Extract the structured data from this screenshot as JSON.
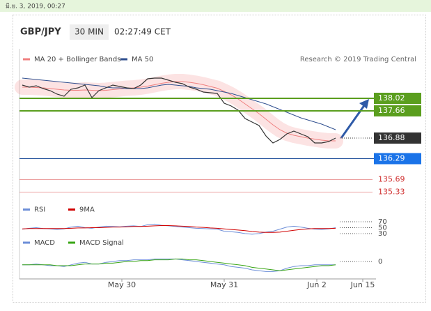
{
  "top_bar": {
    "date": "มิ.ย. 3, 2019, 00:27"
  },
  "header": {
    "symbol": "GBP/JPY",
    "interval": "30 MIN",
    "time": "02:27:49 CET"
  },
  "credit": "Research © 2019 Trading Central",
  "chart_data": [
    {
      "type": "line",
      "x": [
        0,
        1,
        2,
        3,
        4,
        5,
        6,
        7,
        8,
        9,
        10,
        11,
        12,
        13,
        14,
        15,
        16,
        17,
        18,
        19,
        20,
        21,
        22,
        23,
        24,
        25,
        26,
        27,
        28,
        29,
        30,
        31,
        32,
        33,
        34,
        35,
        36,
        37,
        38,
        39,
        40,
        41,
        42,
        43,
        44,
        45
      ],
      "ylim": [
        135.04,
        139.44
      ],
      "color": "#333333",
      "values": [
        138.4,
        138.34,
        138.38,
        138.3,
        138.24,
        138.14,
        138.08,
        138.28,
        138.32,
        138.4,
        138.04,
        138.24,
        138.32,
        138.4,
        138.36,
        138.32,
        138.3,
        138.4,
        138.58,
        138.6,
        138.6,
        138.54,
        138.48,
        138.44,
        138.34,
        138.28,
        138.2,
        138.18,
        138.16,
        137.88,
        137.8,
        137.68,
        137.44,
        137.34,
        137.24,
        136.94,
        136.74,
        136.84,
        137.0,
        137.08,
        137.0,
        136.92,
        136.74,
        136.74,
        136.78,
        136.88
      ],
      "series": [
        {
          "name": "MA 20 + Bollinger Bands",
          "color": "#f08080",
          "values": [
            138.34,
            138.34,
            138.33,
            138.32,
            138.3,
            138.28,
            138.26,
            138.25,
            138.25,
            138.26,
            138.25,
            138.24,
            138.25,
            138.27,
            138.29,
            138.31,
            138.32,
            138.34,
            138.37,
            138.41,
            138.45,
            138.48,
            138.5,
            138.5,
            138.48,
            138.45,
            138.41,
            138.36,
            138.31,
            138.22,
            138.12,
            138.0,
            137.86,
            137.72,
            137.58,
            137.42,
            137.26,
            137.12,
            137.02,
            136.96,
            136.92,
            136.88,
            136.85,
            136.82,
            136.8,
            136.8
          ]
        },
        {
          "name": "MA 50",
          "color": "#2f4f8f",
          "values": [
            138.6,
            138.58,
            138.56,
            138.54,
            138.52,
            138.5,
            138.48,
            138.46,
            138.44,
            138.42,
            138.4,
            138.38,
            138.34,
            138.32,
            138.32,
            138.3,
            138.3,
            138.3,
            138.32,
            138.36,
            138.4,
            138.42,
            138.4,
            138.38,
            138.36,
            138.32,
            138.3,
            138.28,
            138.24,
            138.2,
            138.16,
            138.1,
            138.04,
            137.98,
            137.92,
            137.86,
            137.78,
            137.7,
            137.62,
            137.54,
            137.46,
            137.4,
            137.34,
            137.28,
            137.2,
            137.12
          ]
        }
      ],
      "levels": [
        {
          "value": 138.02,
          "color": "#5a9e1e",
          "style": "box"
        },
        {
          "value": 137.66,
          "color": "#5a9e1e",
          "style": "box"
        },
        {
          "value": 136.88,
          "color": "#333333",
          "style": "dotted"
        },
        {
          "value": 136.29,
          "color": "#1f4e99",
          "style": "blue-box"
        },
        {
          "value": 135.69,
          "color": "#e06060",
          "style": "text"
        },
        {
          "value": 135.33,
          "color": "#e06060",
          "style": "text"
        }
      ]
    },
    {
      "type": "line",
      "ylim": [
        10,
        90
      ],
      "yticks": [
        70,
        50,
        30
      ],
      "series": [
        {
          "name": "RSI",
          "color": "#6c8ed8",
          "values": [
            45,
            48,
            50,
            47,
            46,
            44,
            46,
            52,
            55,
            50,
            48,
            52,
            55,
            54,
            53,
            55,
            56,
            54,
            60,
            62,
            58,
            56,
            54,
            52,
            50,
            48,
            47,
            46,
            45,
            38,
            36,
            34,
            30,
            28,
            30,
            35,
            38,
            45,
            52,
            55,
            52,
            48,
            45,
            44,
            46,
            50
          ]
        },
        {
          "name": "9MA",
          "color": "#d00000",
          "values": [
            46,
            47,
            47,
            47,
            47,
            47,
            47,
            48,
            49,
            49,
            50,
            50,
            51,
            52,
            52,
            53,
            54,
            54,
            55,
            56,
            57,
            57,
            56,
            55,
            54,
            52,
            51,
            49,
            48,
            46,
            44,
            42,
            40,
            37,
            35,
            34,
            34,
            35,
            38,
            41,
            44,
            46,
            47,
            47,
            47,
            48
          ]
        }
      ]
    },
    {
      "type": "line",
      "ylim": [
        -0.15,
        0.15
      ],
      "yticks": [
        0
      ],
      "xlim": [
        -0.4,
        50.8
      ],
      "xticks": [
        {
          "value": 14.3,
          "label": "May 30"
        },
        {
          "value": 29,
          "label": "May 31"
        },
        {
          "value": 42.3,
          "label": "Jun 2"
        },
        {
          "value": 48.9,
          "label": "Jun 15"
        }
      ],
      "series": [
        {
          "name": "MACD",
          "color": "#6c8ed8",
          "values": [
            -0.04,
            -0.04,
            -0.03,
            -0.04,
            -0.05,
            -0.05,
            -0.06,
            -0.04,
            -0.02,
            -0.01,
            -0.03,
            -0.03,
            -0.01,
            0.0,
            0.01,
            0.01,
            0.02,
            0.02,
            0.02,
            0.03,
            0.03,
            0.03,
            0.03,
            0.02,
            0.01,
            0.0,
            -0.01,
            -0.02,
            -0.03,
            -0.04,
            -0.06,
            -0.07,
            -0.08,
            -0.1,
            -0.11,
            -0.12,
            -0.12,
            -0.11,
            -0.08,
            -0.06,
            -0.05,
            -0.05,
            -0.04,
            -0.04,
            -0.04,
            -0.04
          ]
        },
        {
          "name": "MACD Signal",
          "color": "#3aa616",
          "values": [
            -0.04,
            -0.04,
            -0.04,
            -0.04,
            -0.04,
            -0.05,
            -0.05,
            -0.05,
            -0.04,
            -0.03,
            -0.03,
            -0.03,
            -0.02,
            -0.02,
            -0.01,
            0.0,
            0.0,
            0.01,
            0.01,
            0.02,
            0.02,
            0.02,
            0.03,
            0.03,
            0.02,
            0.02,
            0.01,
            0.0,
            -0.01,
            -0.02,
            -0.03,
            -0.04,
            -0.05,
            -0.07,
            -0.08,
            -0.09,
            -0.1,
            -0.11,
            -0.1,
            -0.09,
            -0.08,
            -0.07,
            -0.06,
            -0.05,
            -0.05,
            -0.04
          ]
        }
      ]
    }
  ]
}
